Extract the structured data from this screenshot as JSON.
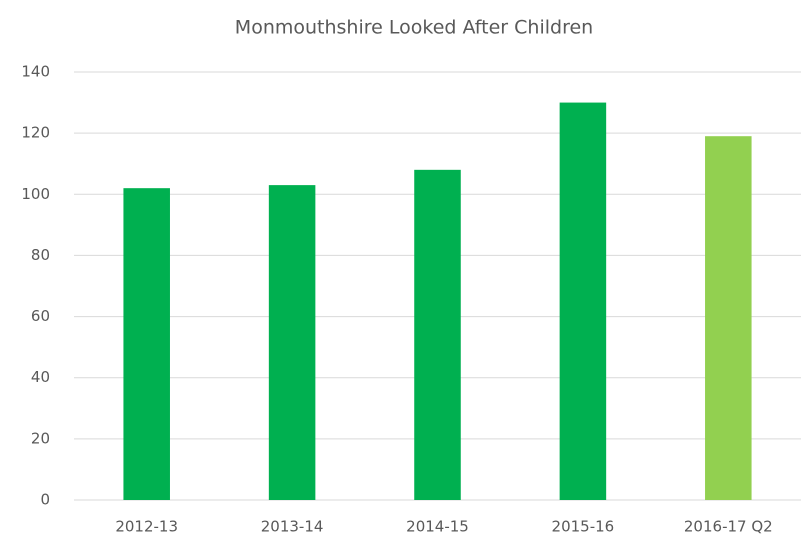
{
  "chart_data": {
    "type": "bar",
    "title": "Monmouthshire Looked After Children",
    "categories": [
      "2012-13",
      "2013-14",
      "2014-15",
      "2015-16",
      "2016-17 Q2"
    ],
    "values": [
      102,
      103,
      108,
      130,
      119
    ],
    "colors": [
      "#00b050",
      "#00b050",
      "#00b050",
      "#00b050",
      "#92d050"
    ],
    "ylim": [
      0,
      140
    ],
    "yticks": [
      0,
      20,
      40,
      60,
      80,
      100,
      120,
      140
    ],
    "grid": true
  }
}
